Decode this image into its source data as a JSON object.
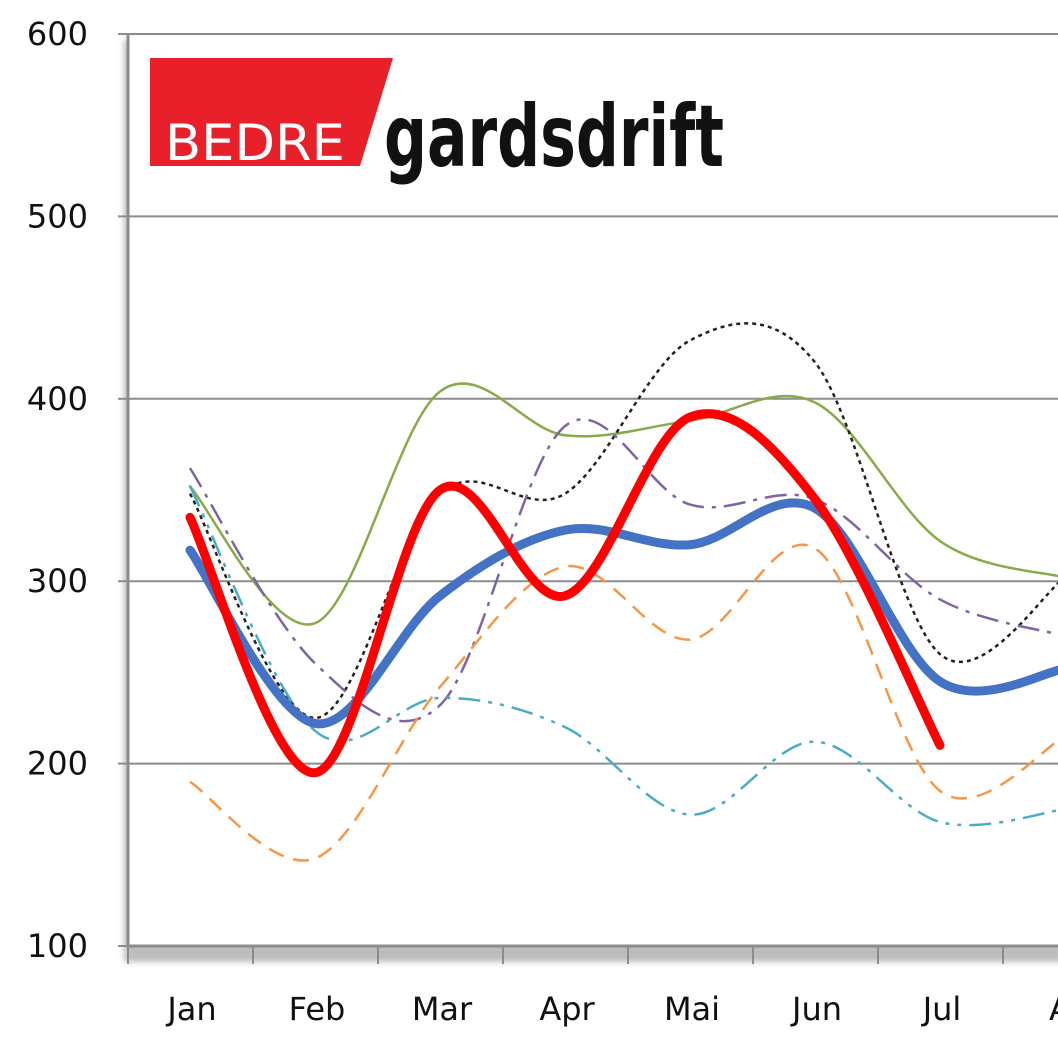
{
  "chart_data": {
    "type": "line",
    "title": "",
    "xlabel": "",
    "ylabel": "",
    "ylim": [
      100,
      600
    ],
    "y_ticks": [
      100,
      200,
      300,
      400,
      500,
      600
    ],
    "categories": [
      "Jan",
      "Feb",
      "Mar",
      "Apr",
      "Mai",
      "Jun",
      "Jul",
      "Aug"
    ],
    "x_tick_labels": [
      "Jan",
      "Feb",
      "Mar",
      "Apr",
      "Mai",
      "Jun",
      "Jul",
      "A"
    ],
    "grid": true,
    "legend": "none",
    "series": [
      {
        "name": "series-1-blue-thick",
        "color": "#4472c4",
        "style": "solid-thick",
        "values": [
          317,
          222,
          292,
          328,
          320,
          340,
          245,
          252
        ]
      },
      {
        "name": "series-2-red-thick",
        "color": "#ff0000",
        "style": "solid-thick",
        "values": [
          335,
          195,
          350,
          292,
          390,
          345,
          210,
          null
        ]
      },
      {
        "name": "series-3-green",
        "color": "#8aaa4a",
        "style": "solid-thin",
        "values": [
          352,
          277,
          404,
          380,
          388,
          398,
          322,
          302
        ]
      },
      {
        "name": "series-4-black-dotted",
        "color": "#222222",
        "style": "dotted",
        "values": [
          348,
          225,
          348,
          348,
          432,
          420,
          260,
          302
        ]
      },
      {
        "name": "series-5-purple-dashdot",
        "color": "#8064a2",
        "style": "dash-dot",
        "values": [
          362,
          255,
          232,
          385,
          342,
          345,
          290,
          270
        ]
      },
      {
        "name": "series-6-orange-dashed",
        "color": "#f79646",
        "style": "dashed",
        "values": [
          190,
          148,
          242,
          308,
          268,
          318,
          185,
          215
        ]
      },
      {
        "name": "series-7-teal-dashdotdot",
        "color": "#4bacc6",
        "style": "dash-dot-dot",
        "values": [
          352,
          218,
          236,
          220,
          172,
          212,
          168,
          175
        ]
      }
    ]
  },
  "logo": {
    "left_text": "BEDRE",
    "right_text": "gardsdrift",
    "brand_color": "#e8202a"
  }
}
